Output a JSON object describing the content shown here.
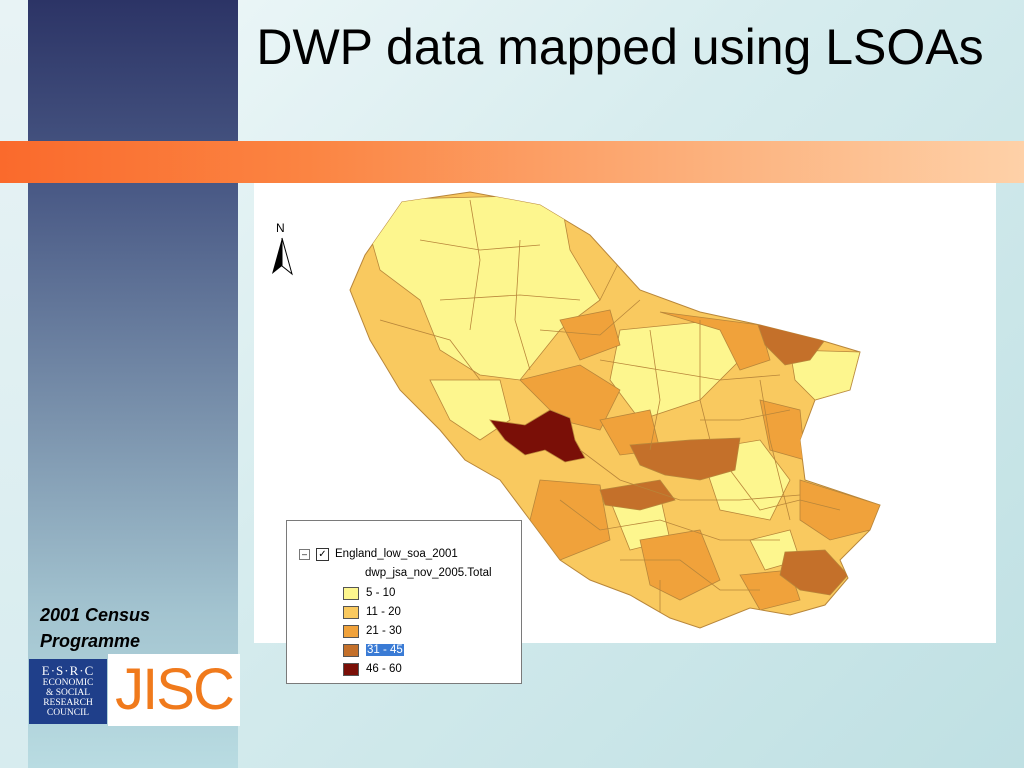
{
  "title": "DWP data mapped using LSOAs",
  "north_label": "N",
  "legend": {
    "layer_name": "England_low_soa_2001",
    "field_name": "dwp_jsa_nov_2005.Total",
    "classes": [
      {
        "label": "5 - 10",
        "color": "#fdf68e",
        "selected": false
      },
      {
        "label": "11 - 20",
        "color": "#f9c95f",
        "selected": false
      },
      {
        "label": "21 - 30",
        "color": "#f0a23b",
        "selected": false
      },
      {
        "label": "31 - 45",
        "color": "#c4702a",
        "selected": true
      },
      {
        "label": "46 - 60",
        "color": "#7a0f07",
        "selected": false
      }
    ]
  },
  "footer": {
    "programme_line1": "2001 Census",
    "programme_line2": "Programme",
    "esrc_top": "E·S·R·C",
    "esrc_lines": [
      "ECONOMIC",
      "& SOCIAL",
      "RESEARCH",
      "COUNCIL"
    ],
    "jisc": "JISC"
  },
  "colors": {
    "band": "#fa6a2c",
    "boundary": "#b8863a"
  }
}
